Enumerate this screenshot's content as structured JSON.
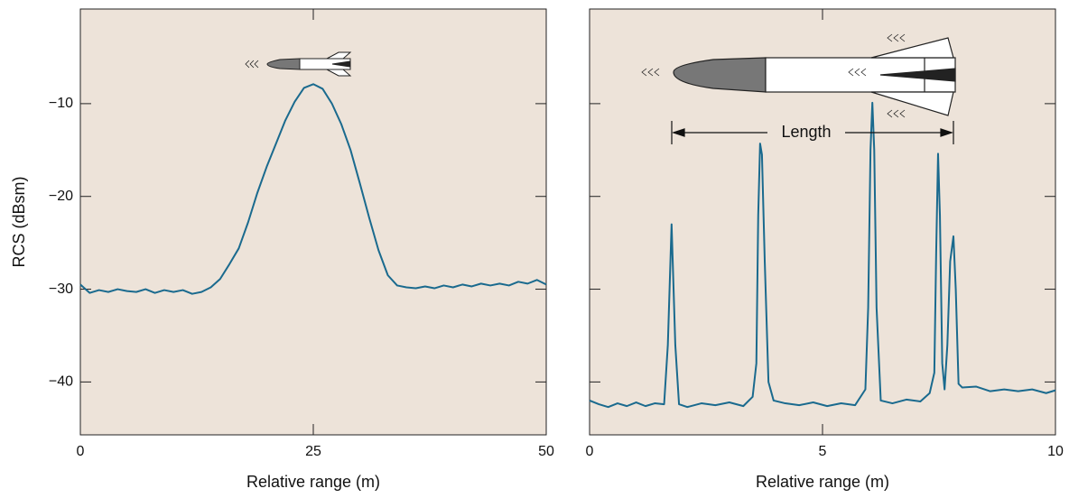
{
  "chart_data": [
    {
      "type": "line",
      "ylabel": "RCS (dBsm)",
      "xlabel": "Relative range (m)",
      "xlim": [
        0,
        50
      ],
      "xticks": [
        0,
        25,
        50
      ],
      "ylim": [
        -45.7,
        0.2
      ],
      "yticks": [
        {
          "value": -40,
          "label": "−40"
        },
        {
          "value": -30,
          "label": "−30"
        },
        {
          "value": -20,
          "label": "−20"
        },
        {
          "value": -10,
          "label": "−10"
        }
      ],
      "x": [
        0,
        1,
        2,
        3,
        4,
        5,
        6,
        7,
        8,
        9,
        10,
        11,
        12,
        13,
        14,
        15,
        16,
        17,
        18,
        19,
        20,
        21,
        22,
        23,
        24,
        25,
        26,
        27,
        28,
        29,
        30,
        31,
        32,
        33,
        34,
        35,
        36,
        37,
        38,
        39,
        40,
        41,
        42,
        43,
        44,
        45,
        46,
        47,
        48,
        49,
        50
      ],
      "series": [
        {
          "color": "#1a6a8e",
          "values": [
            -29.5,
            -30.4,
            -30.1,
            -30.3,
            -30,
            -30.2,
            -30.3,
            -30,
            -30.4,
            -30.1,
            -30.3,
            -30.1,
            -30.5,
            -30.3,
            -29.8,
            -28.9,
            -27.3,
            -25.6,
            -22.8,
            -19.6,
            -16.8,
            -14.3,
            -11.8,
            -9.8,
            -8.3,
            -7.9,
            -8.4,
            -10,
            -12.2,
            -15,
            -18.6,
            -22.3,
            -25.8,
            -28.5,
            -29.6,
            -29.8,
            -29.9,
            -29.7,
            -29.9,
            -29.6,
            -29.8,
            -29.5,
            -29.7,
            -29.4,
            -29.6,
            -29.4,
            -29.6,
            -29.2,
            -29.4,
            -29,
            -29.5
          ]
        }
      ],
      "background": "#ede3d9"
    },
    {
      "type": "line",
      "xlabel": "Relative range (m)",
      "annotation": "Length",
      "xlim": [
        0,
        10
      ],
      "xticks": [
        0,
        5,
        10
      ],
      "ylim": [
        -45.7,
        0.2
      ],
      "yticks": [
        -40,
        -30,
        -20,
        -10
      ],
      "x": [
        0,
        0.2,
        0.4,
        0.6,
        0.8,
        1.0,
        1.2,
        1.4,
        1.6,
        1.68,
        1.76,
        1.84,
        1.92,
        2.1,
        2.4,
        2.7,
        3.0,
        3.3,
        3.5,
        3.58,
        3.62,
        3.66,
        3.7,
        3.76,
        3.84,
        3.95,
        4.2,
        4.5,
        4.8,
        5.1,
        5.4,
        5.7,
        5.92,
        5.98,
        6.03,
        6.07,
        6.11,
        6.16,
        6.25,
        6.5,
        6.8,
        7.1,
        7.3,
        7.4,
        7.44,
        7.48,
        7.52,
        7.57,
        7.62,
        7.68,
        7.74,
        7.81,
        7.86,
        7.92,
        8.0,
        8.3,
        8.6,
        8.9,
        9.2,
        9.5,
        9.8,
        10
      ],
      "series": [
        {
          "color": "#1a6a8e",
          "values": [
            -42,
            -42.4,
            -42.7,
            -42.3,
            -42.6,
            -42.2,
            -42.6,
            -42.3,
            -42.4,
            -36,
            -23,
            -36,
            -42.4,
            -42.7,
            -42.3,
            -42.5,
            -42.2,
            -42.6,
            -41.6,
            -38,
            -22,
            -14.3,
            -15.5,
            -27,
            -40,
            -42,
            -42.3,
            -42.5,
            -42.2,
            -42.6,
            -42.3,
            -42.5,
            -40.8,
            -32,
            -15,
            -9.9,
            -15,
            -32,
            -42,
            -42.3,
            -41.9,
            -42.1,
            -41.2,
            -39,
            -26,
            -15.4,
            -22,
            -38,
            -40.8,
            -36,
            -27,
            -24.3,
            -30,
            -40.2,
            -40.6,
            -40.5,
            -41,
            -40.8,
            -41,
            -40.8,
            -41.2,
            -40.9
          ]
        }
      ],
      "background": "#ede3d9"
    }
  ]
}
